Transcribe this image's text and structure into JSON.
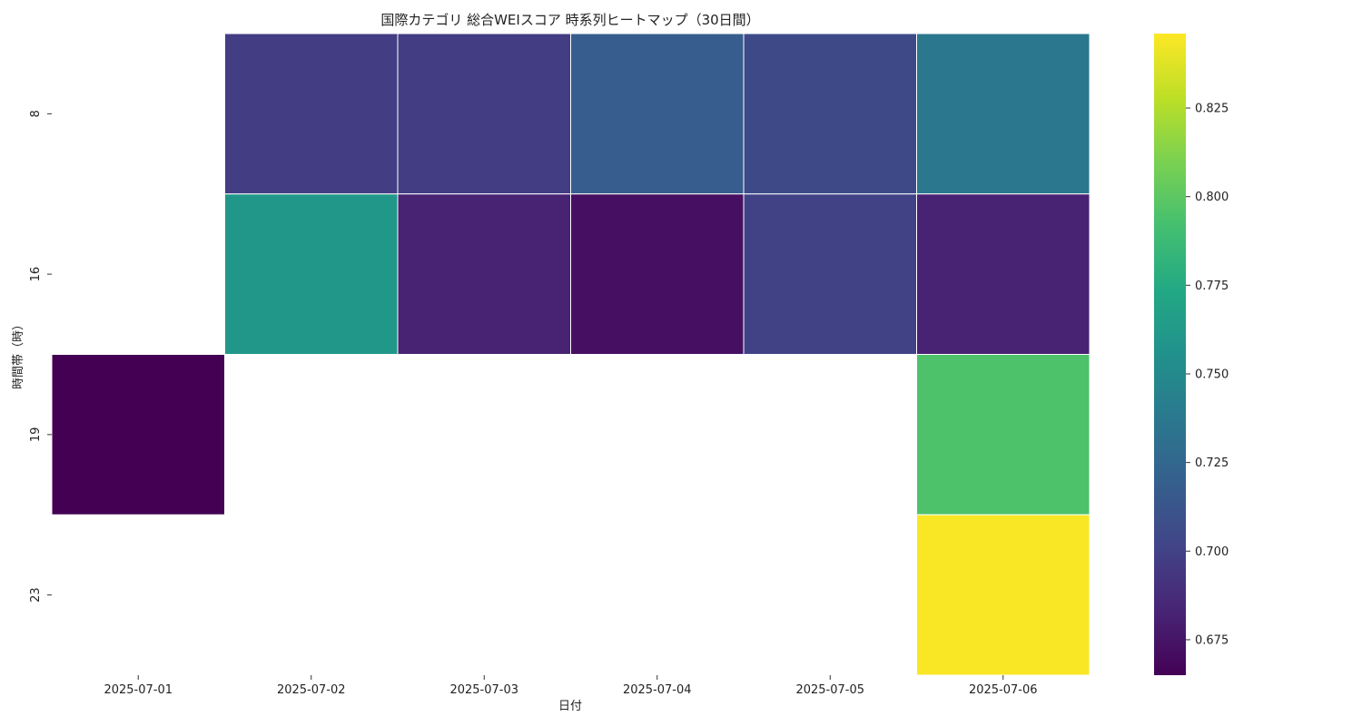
{
  "chart_data": {
    "type": "heatmap",
    "title": "国際カテゴリ 総合WEIスコア 時系列ヒートマップ（30日間）",
    "xlabel": "日付",
    "ylabel": "時間帯（時）",
    "x_categories": [
      "2025-07-01",
      "2025-07-02",
      "2025-07-03",
      "2025-07-04",
      "2025-07-05",
      "2025-07-06"
    ],
    "y_categories": [
      "8",
      "16",
      "19",
      "23"
    ],
    "values": [
      [
        null,
        0.697,
        0.697,
        0.718,
        0.705,
        0.737
      ],
      [
        null,
        0.76,
        0.682,
        0.672,
        0.7,
        0.682
      ],
      [
        0.665,
        null,
        null,
        null,
        null,
        0.795
      ],
      [
        null,
        null,
        null,
        null,
        null,
        0.845
      ]
    ],
    "colorbar": {
      "min": 0.665,
      "max": 0.846,
      "ticks": [
        0.675,
        0.7,
        0.725,
        0.75,
        0.775,
        0.8,
        0.825
      ],
      "tick_labels": [
        "0.675",
        "0.700",
        "0.725",
        "0.750",
        "0.775",
        "0.800",
        "0.825"
      ],
      "colormap": "viridis"
    },
    "missing_color": "#ffffff",
    "grid_line_color": "#ffffff"
  }
}
